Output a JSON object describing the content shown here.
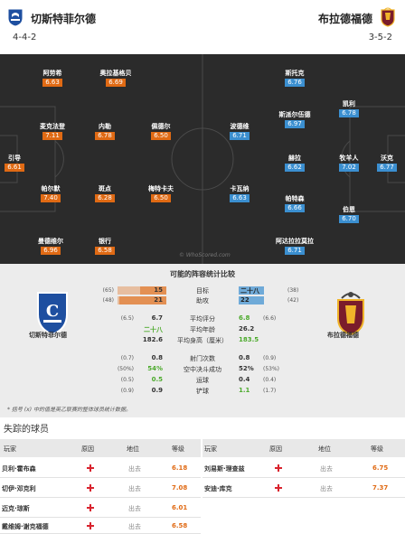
{
  "header": {
    "home_name": "切斯特菲尔德",
    "home_formation": "4-4-2",
    "away_name": "布拉德福德",
    "away_formation": "3-5-2"
  },
  "home_players": [
    {
      "name": "阿劳希",
      "rating": "6.63"
    },
    {
      "name": "奥拉基格贝",
      "rating": "6.69"
    },
    {
      "name": "麦克法登",
      "rating": "7.11"
    },
    {
      "name": "内勒",
      "rating": "6.78"
    },
    {
      "name": "佩德尔",
      "rating": "6.50"
    },
    {
      "name": "引导",
      "rating": "6.61"
    },
    {
      "name": "帕尔默",
      "rating": "7.40"
    },
    {
      "name": "斑点",
      "rating": "6.28"
    },
    {
      "name": "梅特卡夫",
      "rating": "6.50"
    },
    {
      "name": "曼德维尔",
      "rating": "6.96"
    },
    {
      "name": "银行",
      "rating": "6.58"
    }
  ],
  "away_players": [
    {
      "name": "斯托克",
      "rating": "6.76"
    },
    {
      "name": "凯利",
      "rating": "6.78"
    },
    {
      "name": "斯派尔伍德",
      "rating": "6.97"
    },
    {
      "name": "波德维",
      "rating": "6.71"
    },
    {
      "name": "赫拉",
      "rating": "6.62"
    },
    {
      "name": "牧羊人",
      "rating": "7.02"
    },
    {
      "name": "沃克",
      "rating": "6.77"
    },
    {
      "name": "卡瓦纳",
      "rating": "6.63"
    },
    {
      "name": "帕特森",
      "rating": "6.66"
    },
    {
      "name": "伯恩",
      "rating": "6.70"
    },
    {
      "name": "阿达拉拉莫拉",
      "rating": "6.71"
    }
  ],
  "watermark": "© WhoScored.com",
  "stats": {
    "title": "可能的阵容统计比较",
    "home_team": "切斯特菲尔德",
    "away_team": "布拉德福德",
    "bar_rows": [
      {
        "label": "目标",
        "home": "15",
        "home_rank": "(65)",
        "away": "二十八",
        "away_rank": "(38)",
        "home_frac": 0.54,
        "away_frac": 1.0
      },
      {
        "label": "助攻",
        "home": "21",
        "home_rank": "(48)",
        "away": "22",
        "away_rank": "(42)",
        "home_frac": 0.95,
        "away_frac": 1.0
      }
    ],
    "rows": [
      {
        "label": "平均评分",
        "home": "6.7",
        "home_rank": "(6.5)",
        "away": "6.8",
        "away_rank": "(6.6)"
      },
      {
        "label": "平均年龄",
        "home": "二十八",
        "home_rank": "",
        "away": "26.2",
        "away_rank": ""
      },
      {
        "label": "平均身高（厘米）",
        "home": "182.6",
        "home_rank": "",
        "away": "183.5",
        "away_rank": ""
      },
      {
        "label": "射门次数",
        "home": "0.8",
        "home_rank": "(0.7)",
        "away": "0.8",
        "away_rank": "(0.9)"
      },
      {
        "label": "空中决斗成功",
        "home": "54%",
        "home_rank": "(50%)",
        "away": "52%",
        "away_rank": "(53%)"
      },
      {
        "label": "运球",
        "home": "0.5",
        "home_rank": "(0.5)",
        "away": "0.4",
        "away_rank": "(0.4)"
      },
      {
        "label": "铲球",
        "home": "0.9",
        "home_rank": "(0.9)",
        "away": "1.1",
        "away_rank": "(1.7)"
      }
    ],
    "note": "* 括号 (x) 中的值是英乙联赛的整体球员统计数据。"
  },
  "missing": {
    "title": "失踪的球员",
    "headers": {
      "player": "玩家",
      "reason": "原因",
      "status": "地位",
      "rating": "等级"
    },
    "home": [
      {
        "player": "贝利·霍布森",
        "status": "出去",
        "rating": "6.18"
      },
      {
        "player": "切伊·邓克利",
        "status": "出去",
        "rating": "7.08"
      },
      {
        "player": "迈克·琼斯",
        "status": "出去",
        "rating": "6.01"
      },
      {
        "player": "戴维姆·谢克福德",
        "status": "出去",
        "rating": "6.58"
      }
    ],
    "away": [
      {
        "player": "刘易斯·理查兹",
        "status": "出去",
        "rating": "6.75"
      },
      {
        "player": "安迪·库克",
        "status": "出去",
        "rating": "7.37"
      }
    ]
  },
  "colors": {
    "home_accent": "#e06a14",
    "away_accent": "#3b8fd0",
    "pitch": "#2b2b2b",
    "positive": "#4caa2c"
  }
}
